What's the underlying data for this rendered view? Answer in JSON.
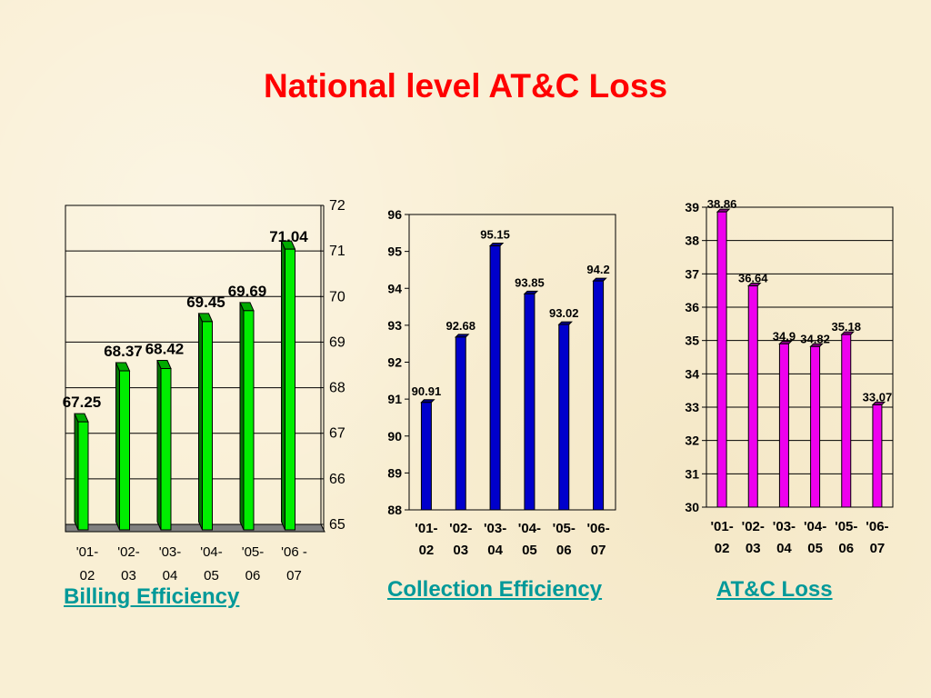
{
  "slide": {
    "title": "National level AT&C Loss",
    "captions": [
      "Billing Efficiency",
      "Collection Efficiency",
      "AT&C Loss"
    ]
  },
  "chart_data": [
    {
      "type": "bar",
      "title": "Billing Efficiency",
      "categories": [
        "'01-02",
        "'02-03",
        "'03-04",
        "'04-05",
        "'05-06",
        "'06 -07"
      ],
      "values": [
        67.25,
        68.37,
        68.42,
        69.45,
        69.69,
        71.04
      ],
      "value_labels": [
        "67.25",
        "68.37",
        "68.42",
        "69.45",
        "69.69",
        "71.04"
      ],
      "ylim": [
        65,
        72
      ],
      "yticks": [
        "65",
        "66",
        "67",
        "68",
        "69",
        "70",
        "71",
        "72"
      ],
      "y_axis_side": "right",
      "three_d": true,
      "grid": true,
      "color": "#00ee00"
    },
    {
      "type": "bar",
      "title": "Collection Efficiency",
      "categories": [
        "'01-02",
        "'02-03",
        "'03-04",
        "'04-05",
        "'05-06",
        "'06-07"
      ],
      "values": [
        90.91,
        92.68,
        95.15,
        93.85,
        93.02,
        94.2
      ],
      "value_labels": [
        "90.91",
        "92.68",
        "95.15",
        "93.85",
        "93.02",
        "94.2"
      ],
      "ylim": [
        88,
        96
      ],
      "yticks": [
        "88",
        "89",
        "90",
        "91",
        "92",
        "93",
        "94",
        "95",
        "96"
      ],
      "y_axis_side": "left",
      "grid": false,
      "color": "#0000cc"
    },
    {
      "type": "bar",
      "title": "AT&C Loss",
      "categories": [
        "'01-02",
        "'02-03",
        "'03-04",
        "'04-05",
        "'05-06",
        "'06-07"
      ],
      "values": [
        38.86,
        36.64,
        34.9,
        34.82,
        35.18,
        33.07
      ],
      "value_labels": [
        "38.86",
        "36.64",
        "34.9",
        "34.82",
        "35.18",
        "33.07"
      ],
      "ylim": [
        30,
        39
      ],
      "yticks": [
        "30",
        "31",
        "32",
        "33",
        "34",
        "35",
        "36",
        "37",
        "38",
        "39"
      ],
      "y_axis_side": "left",
      "grid": true,
      "color": "#ee00ee"
    }
  ]
}
